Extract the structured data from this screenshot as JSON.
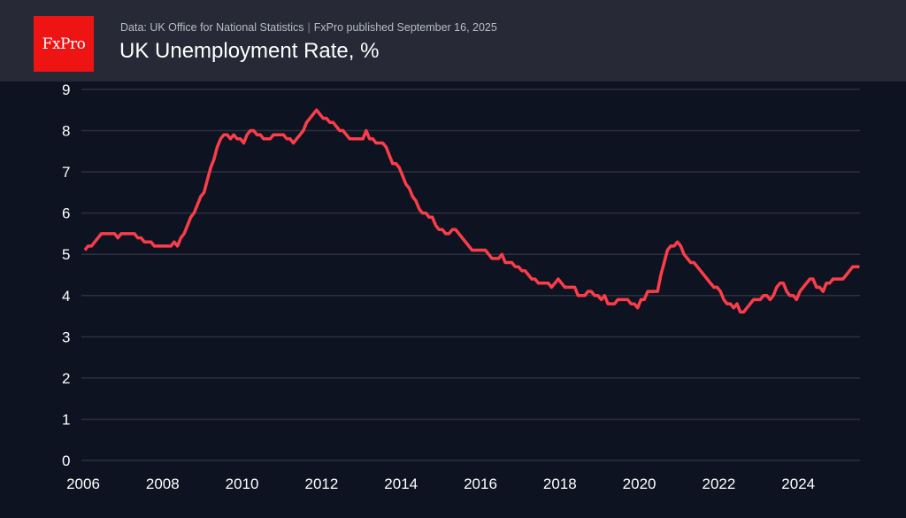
{
  "header": {
    "logo_text": "FxPro",
    "source": "Data: UK Office for National Statistics",
    "separator": "|",
    "published": "FxPro published September 16, 2025",
    "title": "UK Unemployment Rate, %"
  },
  "chart_data": {
    "type": "line",
    "title": "UK Unemployment Rate, %",
    "xlabel": "",
    "ylabel": "",
    "x_start": "2006-01",
    "x_frequency": "monthly",
    "xlim": [
      2006,
      2025.55
    ],
    "ylim": [
      0,
      9
    ],
    "grid": true,
    "x_ticks": [
      "2006",
      "2008",
      "2010",
      "2012",
      "2014",
      "2016",
      "2018",
      "2020",
      "2022",
      "2024"
    ],
    "y_ticks": [
      "0",
      "1",
      "2",
      "3",
      "4",
      "5",
      "6",
      "7",
      "8",
      "9"
    ],
    "line_color": "#ff3d4a",
    "series": [
      {
        "values": [
          5.1,
          5.2,
          5.2,
          5.3,
          5.4,
          5.5,
          5.5,
          5.5,
          5.5,
          5.5,
          5.4,
          5.5,
          5.5,
          5.5,
          5.5,
          5.5,
          5.4,
          5.4,
          5.3,
          5.3,
          5.3,
          5.2,
          5.2,
          5.2,
          5.2,
          5.2,
          5.2,
          5.3,
          5.2,
          5.4,
          5.5,
          5.7,
          5.9,
          6.0,
          6.2,
          6.4,
          6.5,
          6.8,
          7.1,
          7.3,
          7.6,
          7.8,
          7.9,
          7.9,
          7.8,
          7.9,
          7.8,
          7.8,
          7.7,
          7.9,
          8.0,
          8.0,
          7.9,
          7.9,
          7.8,
          7.8,
          7.8,
          7.9,
          7.9,
          7.9,
          7.9,
          7.8,
          7.8,
          7.7,
          7.8,
          7.9,
          8.0,
          8.2,
          8.3,
          8.4,
          8.5,
          8.4,
          8.3,
          8.3,
          8.2,
          8.2,
          8.1,
          8.0,
          8.0,
          7.9,
          7.8,
          7.8,
          7.8,
          7.8,
          7.8,
          8.0,
          7.8,
          7.8,
          7.7,
          7.7,
          7.7,
          7.6,
          7.4,
          7.2,
          7.2,
          7.1,
          6.9,
          6.7,
          6.6,
          6.4,
          6.3,
          6.1,
          6.0,
          6.0,
          5.9,
          5.9,
          5.7,
          5.6,
          5.6,
          5.5,
          5.5,
          5.6,
          5.6,
          5.5,
          5.4,
          5.3,
          5.2,
          5.1,
          5.1,
          5.1,
          5.1,
          5.1,
          5.0,
          4.9,
          4.9,
          4.9,
          5.0,
          4.8,
          4.8,
          4.8,
          4.7,
          4.7,
          4.6,
          4.6,
          4.5,
          4.4,
          4.4,
          4.3,
          4.3,
          4.3,
          4.3,
          4.2,
          4.3,
          4.4,
          4.3,
          4.2,
          4.2,
          4.2,
          4.2,
          4.0,
          4.0,
          4.0,
          4.1,
          4.1,
          4.0,
          4.0,
          3.9,
          4.0,
          3.8,
          3.8,
          3.8,
          3.9,
          3.9,
          3.9,
          3.9,
          3.8,
          3.8,
          3.7,
          3.9,
          3.9,
          4.1,
          4.1,
          4.1,
          4.1,
          4.5,
          4.8,
          5.1,
          5.2,
          5.2,
          5.3,
          5.2,
          5.0,
          4.9,
          4.8,
          4.8,
          4.7,
          4.6,
          4.5,
          4.4,
          4.3,
          4.2,
          4.2,
          4.1,
          3.9,
          3.8,
          3.8,
          3.7,
          3.8,
          3.6,
          3.6,
          3.7,
          3.8,
          3.9,
          3.9,
          3.9,
          4.0,
          4.0,
          3.9,
          4.0,
          4.2,
          4.3,
          4.3,
          4.1,
          4.0,
          4.0,
          3.9,
          4.1,
          4.2,
          4.3,
          4.4,
          4.4,
          4.2,
          4.2,
          4.1,
          4.3,
          4.3,
          4.4,
          4.4,
          4.4,
          4.4,
          4.5,
          4.6,
          4.7,
          4.7,
          4.7
        ]
      }
    ]
  }
}
